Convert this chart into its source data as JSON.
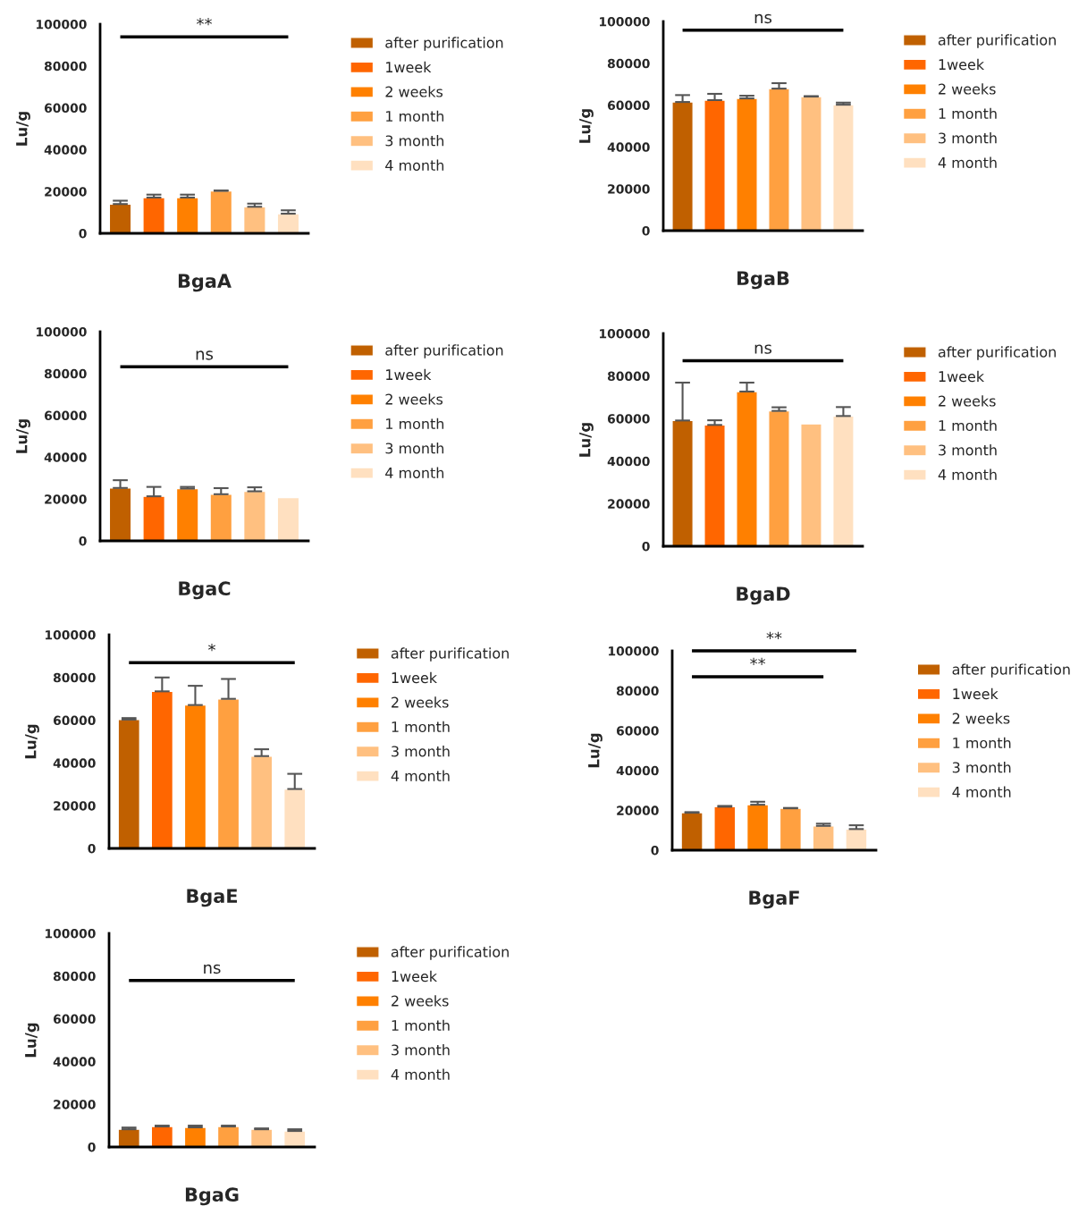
{
  "chart_data": [
    {
      "type": "bar",
      "xlabel": "BgaA",
      "ylabel": "Lu/g",
      "categories": [
        null,
        null,
        null,
        null,
        null,
        null
      ],
      "series": [
        {
          "name": "after purification",
          "color": "#c06000",
          "values": [
            14000,
            null,
            null,
            null,
            null,
            null
          ],
          "errors": [
            [
              14000,
              15600
            ],
            null,
            null,
            null,
            null,
            null
          ]
        },
        {
          "name": "1week",
          "color": "#ff6600",
          "values": [
            null,
            17100,
            null,
            null,
            null,
            null
          ],
          "errors": [
            null,
            [
              17100,
              18500
            ],
            null,
            null,
            null,
            null
          ]
        },
        {
          "name": "2 weeks",
          "color": "#ff8000",
          "values": [
            null,
            null,
            17100,
            null,
            null,
            null
          ],
          "errors": [
            null,
            null,
            [
              17100,
              18500
            ],
            null,
            null,
            null
          ]
        },
        {
          "name": "1 month",
          "color": "#ffa040",
          "values": [
            null,
            null,
            null,
            20300,
            null,
            null
          ],
          "errors": [
            null,
            null,
            null,
            [
              20300,
              20500
            ],
            null,
            null
          ]
        },
        {
          "name": "3 month",
          "color": "#ffc080",
          "values": [
            null,
            null,
            null,
            null,
            12700,
            null
          ],
          "errors": [
            null,
            null,
            null,
            null,
            [
              12700,
              14200
            ],
            null
          ]
        },
        {
          "name": "4 month",
          "color": "#ffe0c0",
          "values": [
            null,
            null,
            null,
            null,
            null,
            9400
          ],
          "errors": [
            null,
            null,
            null,
            null,
            null,
            [
              9400,
              11000
            ]
          ]
        }
      ],
      "ylim": [
        0,
        100000
      ],
      "yticks": [
        0,
        20000,
        40000,
        60000,
        80000,
        100000
      ],
      "tick_labels": "y",
      "legend": "right",
      "grid": false,
      "ref_lines": [
        {
          "axis": "y",
          "value": 93900,
          "label": "**"
        }
      ]
    },
    {
      "type": "bar",
      "xlabel": "BgaB",
      "ylabel": "Lu/g",
      "categories": [
        null,
        null,
        null,
        null,
        null,
        null
      ],
      "series": [
        {
          "name": "after purification",
          "color": "#c06000",
          "values": [
            61500,
            null,
            null,
            null,
            null,
            null
          ],
          "errors": [
            [
              61500,
              64800
            ],
            null,
            null,
            null,
            null,
            null
          ]
        },
        {
          "name": "1week",
          "color": "#ff6600",
          "values": [
            null,
            62400,
            null,
            null,
            null,
            null
          ],
          "errors": [
            null,
            [
              62400,
              65400
            ],
            null,
            null,
            null,
            null
          ]
        },
        {
          "name": "2 weeks",
          "color": "#ff8000",
          "values": [
            null,
            null,
            63200,
            null,
            null,
            null
          ],
          "errors": [
            null,
            null,
            [
              63200,
              64500
            ],
            null,
            null,
            null
          ]
        },
        {
          "name": "1 month",
          "color": "#ffa040",
          "values": [
            null,
            null,
            null,
            67900,
            null,
            null
          ],
          "errors": [
            null,
            null,
            null,
            [
              67900,
              70500
            ],
            null,
            null
          ]
        },
        {
          "name": "3 month",
          "color": "#ffc080",
          "values": [
            null,
            null,
            null,
            null,
            64100,
            null
          ],
          "errors": [
            null,
            null,
            null,
            null,
            [
              64100,
              64300
            ],
            null
          ]
        },
        {
          "name": "4 month",
          "color": "#ffe0c0",
          "values": [
            null,
            null,
            null,
            null,
            null,
            60200
          ],
          "errors": [
            null,
            null,
            null,
            null,
            null,
            [
              60200,
              61200
            ]
          ]
        }
      ],
      "ylim": [
        0,
        100000
      ],
      "yticks": [
        0,
        20000,
        40000,
        60000,
        80000,
        100000
      ],
      "tick_labels": "y",
      "legend": "right",
      "grid": false,
      "ref_lines": [
        {
          "axis": "y",
          "value": 95800,
          "label": "ns"
        }
      ]
    },
    {
      "type": "bar",
      "xlabel": "BgaC",
      "ylabel": "Lu/g",
      "categories": [
        null,
        null,
        null,
        null,
        null,
        null
      ],
      "series": [
        {
          "name": "after purification",
          "color": "#c06000",
          "values": [
            25300,
            null,
            null,
            null,
            null,
            null
          ],
          "errors": [
            [
              25300,
              29000
            ],
            null,
            null,
            null,
            null,
            null
          ]
        },
        {
          "name": "1week",
          "color": "#ff6600",
          "values": [
            null,
            21300,
            null,
            null,
            null,
            null
          ],
          "errors": [
            null,
            [
              21300,
              25800
            ],
            null,
            null,
            null,
            null
          ]
        },
        {
          "name": "2 weeks",
          "color": "#ff8000",
          "values": [
            null,
            null,
            25000,
            null,
            null,
            null
          ],
          "errors": [
            null,
            null,
            [
              25000,
              25800
            ],
            null,
            null,
            null
          ]
        },
        {
          "name": "1 month",
          "color": "#ffa040",
          "values": [
            null,
            null,
            null,
            22300,
            null,
            null
          ],
          "errors": [
            null,
            null,
            null,
            [
              22300,
              25200
            ],
            null,
            null
          ]
        },
        {
          "name": "3 month",
          "color": "#ffc080",
          "values": [
            null,
            null,
            null,
            null,
            23700,
            null
          ],
          "errors": [
            null,
            null,
            null,
            null,
            [
              23700,
              25600
            ],
            null
          ]
        },
        {
          "name": "4 month",
          "color": "#ffe0c0",
          "values": [
            null,
            null,
            null,
            null,
            null,
            20700
          ]
        }
      ],
      "ylim": [
        0,
        100000
      ],
      "yticks": [
        0,
        20000,
        40000,
        60000,
        80000,
        100000
      ],
      "tick_labels": "y",
      "legend": "right",
      "grid": false,
      "ref_lines": [
        {
          "axis": "y",
          "value": 83200,
          "label": "ns"
        }
      ]
    },
    {
      "type": "bar",
      "xlabel": "BgaD",
      "ylabel": "Lu/g",
      "categories": [
        null,
        null,
        null,
        null,
        null,
        null
      ],
      "series": [
        {
          "name": "after purification",
          "color": "#c06000",
          "values": [
            59100,
            null,
            null,
            null,
            null,
            null
          ],
          "errors": [
            [
              59100,
              76900
            ],
            null,
            null,
            null,
            null,
            null
          ]
        },
        {
          "name": "1week",
          "color": "#ff6600",
          "values": [
            null,
            57000,
            null,
            null,
            null,
            null
          ],
          "errors": [
            null,
            [
              57000,
              59200
            ],
            null,
            null,
            null,
            null
          ]
        },
        {
          "name": "2 weeks",
          "color": "#ff8000",
          "values": [
            null,
            null,
            72700,
            null,
            null,
            null
          ],
          "errors": [
            null,
            null,
            [
              72700,
              76900
            ],
            null,
            null,
            null
          ]
        },
        {
          "name": "1 month",
          "color": "#ffa040",
          "values": [
            null,
            null,
            null,
            63600,
            null,
            null
          ],
          "errors": [
            null,
            null,
            null,
            [
              63600,
              65300
            ],
            null,
            null
          ]
        },
        {
          "name": "3 month",
          "color": "#ffc080",
          "values": [
            null,
            null,
            null,
            null,
            57500,
            null
          ]
        },
        {
          "name": "4 month",
          "color": "#ffe0c0",
          "values": [
            null,
            null,
            null,
            null,
            null,
            61200
          ],
          "errors": [
            null,
            null,
            null,
            null,
            null,
            [
              61200,
              65400
            ]
          ]
        }
      ],
      "ylim": [
        0,
        100000
      ],
      "yticks": [
        0,
        20000,
        40000,
        60000,
        80000,
        100000
      ],
      "tick_labels": "y",
      "legend": "right",
      "grid": false,
      "ref_lines": [
        {
          "axis": "y",
          "value": 87200,
          "label": "ns"
        }
      ]
    },
    {
      "type": "bar",
      "xlabel": "BgaE",
      "ylabel": "Lu/g",
      "categories": [
        null,
        null,
        null,
        null,
        null,
        null
      ],
      "series": [
        {
          "name": "after purification",
          "color": "#c06000",
          "values": [
            60300,
            null,
            null,
            null,
            null,
            null
          ],
          "errors": [
            [
              60300,
              61000
            ],
            null,
            null,
            null,
            null,
            null
          ]
        },
        {
          "name": "1week",
          "color": "#ff6600",
          "values": [
            null,
            73500,
            null,
            null,
            null,
            null
          ],
          "errors": [
            null,
            [
              73500,
              80000
            ],
            null,
            null,
            null,
            null
          ]
        },
        {
          "name": "2 weeks",
          "color": "#ff8000",
          "values": [
            null,
            null,
            67100,
            null,
            null,
            null
          ],
          "errors": [
            null,
            null,
            [
              67100,
              76100
            ],
            null,
            null,
            null
          ]
        },
        {
          "name": "1 month",
          "color": "#ffa040",
          "values": [
            null,
            null,
            null,
            70000,
            null,
            null
          ],
          "errors": [
            null,
            null,
            null,
            [
              70000,
              79300
            ],
            null,
            null
          ]
        },
        {
          "name": "3 month",
          "color": "#ffc080",
          "values": [
            null,
            null,
            null,
            null,
            43200,
            null
          ],
          "errors": [
            null,
            null,
            null,
            null,
            [
              43200,
              46400
            ],
            null
          ]
        },
        {
          "name": "4 month",
          "color": "#ffe0c0",
          "values": [
            null,
            null,
            null,
            null,
            null,
            27800
          ],
          "errors": [
            null,
            null,
            null,
            null,
            null,
            [
              27800,
              34900
            ]
          ]
        }
      ],
      "ylim": [
        0,
        100000
      ],
      "yticks": [
        0,
        20000,
        40000,
        60000,
        80000,
        100000
      ],
      "tick_labels": "y",
      "legend": "right",
      "grid": false,
      "ref_lines": [
        {
          "axis": "y",
          "value": 86900,
          "label": "*"
        }
      ]
    },
    {
      "type": "bar",
      "xlabel": "BgaF",
      "ylabel": "Lu/g",
      "categories": [
        null,
        null,
        null,
        null,
        null,
        null
      ],
      "series": [
        {
          "name": "after purification",
          "color": "#c06000",
          "values": [
            18800,
            null,
            null,
            null,
            null,
            null
          ],
          "errors": [
            [
              18800,
              19100
            ],
            null,
            null,
            null,
            null,
            null
          ]
        },
        {
          "name": "1week",
          "color": "#ff6600",
          "values": [
            null,
            21800,
            null,
            null,
            null,
            null
          ],
          "errors": [
            null,
            [
              21800,
              22200
            ],
            null,
            null,
            null,
            null
          ]
        },
        {
          "name": "2 weeks",
          "color": "#ff8000",
          "values": [
            null,
            null,
            22800,
            null,
            null,
            null
          ],
          "errors": [
            null,
            null,
            [
              22800,
              24300
            ],
            null,
            null,
            null
          ]
        },
        {
          "name": "1 month",
          "color": "#ffa040",
          "values": [
            null,
            null,
            null,
            21000,
            null,
            null
          ],
          "errors": [
            null,
            null,
            null,
            [
              21000,
              21200
            ],
            null,
            null
          ]
        },
        {
          "name": "3 month",
          "color": "#ffc080",
          "values": [
            null,
            null,
            null,
            null,
            12200,
            null
          ],
          "errors": [
            null,
            null,
            null,
            null,
            [
              12200,
              13300
            ],
            null
          ]
        },
        {
          "name": "4 month",
          "color": "#ffe0c0",
          "values": [
            null,
            null,
            null,
            null,
            null,
            10600
          ],
          "errors": [
            null,
            null,
            null,
            null,
            null,
            [
              10600,
              12500
            ]
          ]
        }
      ],
      "ylim": [
        0,
        100000
      ],
      "yticks": [
        0,
        20000,
        40000,
        60000,
        80000,
        100000
      ],
      "tick_labels": "y",
      "legend": "right",
      "grid": false,
      "ref_lines": [
        {
          "axis": "y",
          "value": 100000,
          "label": "**"
        },
        {
          "axis": "y",
          "value": 87000,
          "label": "**"
        }
      ]
    },
    {
      "type": "bar",
      "xlabel": "BgaG",
      "ylabel": "Lu/g",
      "categories": [
        null,
        null,
        null,
        null,
        null,
        null
      ],
      "series": [
        {
          "name": "after purification",
          "color": "#c06000",
          "values": [
            8300,
            null,
            null,
            null,
            null,
            null
          ],
          "errors": [
            [
              8300,
              9100
            ],
            null,
            null,
            null,
            null,
            null
          ]
        },
        {
          "name": "1week",
          "color": "#ff6600",
          "values": [
            null,
            9600,
            null,
            null,
            null,
            null
          ],
          "errors": [
            null,
            [
              9600,
              10000
            ],
            null,
            null,
            null,
            null
          ]
        },
        {
          "name": "2 weeks",
          "color": "#ff8000",
          "values": [
            null,
            null,
            9200,
            null,
            null,
            null
          ],
          "errors": [
            null,
            null,
            [
              9200,
              10000
            ],
            null,
            null,
            null
          ]
        },
        {
          "name": "1 month",
          "color": "#ffa040",
          "values": [
            null,
            null,
            null,
            9600,
            null,
            null
          ],
          "errors": [
            null,
            null,
            null,
            [
              9600,
              10000
            ],
            null,
            null
          ]
        },
        {
          "name": "3 month",
          "color": "#ffc080",
          "values": [
            null,
            null,
            null,
            null,
            8300,
            null
          ],
          "errors": [
            null,
            null,
            null,
            null,
            [
              8300,
              8700
            ],
            null
          ]
        },
        {
          "name": "4 month",
          "color": "#ffe0c0",
          "values": [
            null,
            null,
            null,
            null,
            null,
            7500
          ],
          "errors": [
            null,
            null,
            null,
            null,
            null,
            [
              7500,
              8300
            ]
          ]
        }
      ],
      "ylim": [
        0,
        100000
      ],
      "yticks": [
        0,
        20000,
        40000,
        60000,
        80000,
        100000
      ],
      "tick_labels": "y",
      "legend": "right",
      "grid": false,
      "ref_lines": [
        {
          "axis": "y",
          "value": 77900,
          "label": "ns"
        }
      ]
    }
  ]
}
